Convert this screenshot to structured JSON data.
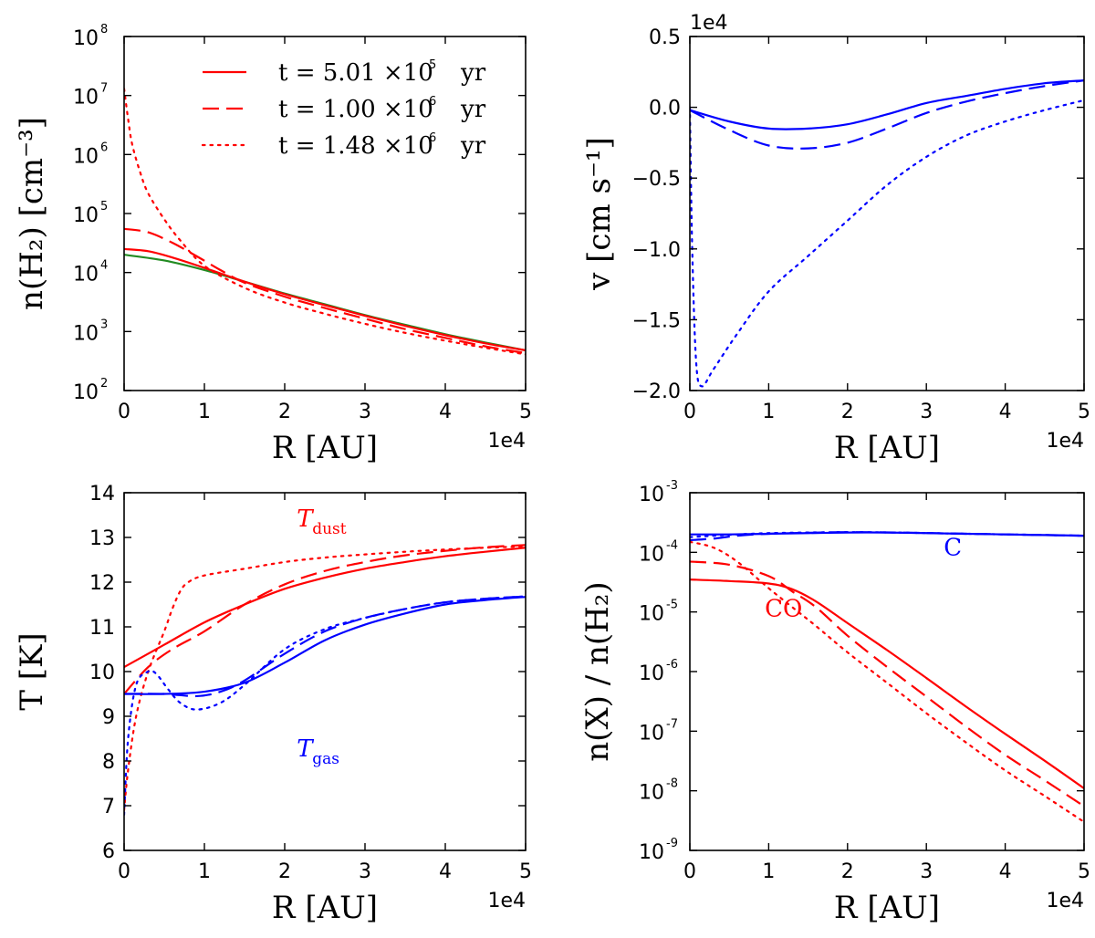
{
  "chart_data": [
    {
      "type": "line",
      "ylabel": "n(H₂) [cm⁻³]",
      "xlabel": "R [AU]",
      "x_offset": "1e4",
      "xlim": [
        0,
        5
      ],
      "ylim": [
        100,
        100000000
      ],
      "yscale": "log",
      "x_ticks": [
        "0",
        "1",
        "2",
        "3",
        "4",
        "5"
      ],
      "y_ticks": [
        {
          "base": "10",
          "exp": "2"
        },
        {
          "base": "10",
          "exp": "3"
        },
        {
          "base": "10",
          "exp": "4"
        },
        {
          "base": "10",
          "exp": "5"
        },
        {
          "base": "10",
          "exp": "6"
        },
        {
          "base": "10",
          "exp": "7"
        },
        {
          "base": "10",
          "exp": "8"
        }
      ],
      "legend": {
        "placement": "upper-right",
        "entries": [
          {
            "prefix": "t = 5.01 ×10",
            "exp": "5",
            "unit": "yr",
            "style": "solid"
          },
          {
            "prefix": "t = 1.00 ×10",
            "exp": "6",
            "unit": "yr",
            "style": "dashed"
          },
          {
            "prefix": "t = 1.48 ×10",
            "exp": "6",
            "unit": "yr",
            "style": "dotted"
          }
        ]
      },
      "series": [
        {
          "color": "#228b22",
          "style": "solid",
          "x": [
            0,
            0.5,
            1,
            1.5,
            2,
            2.5,
            3,
            3.5,
            4,
            4.5,
            5
          ],
          "y": [
            20000,
            16000,
            11000,
            7000,
            4400,
            2900,
            1900,
            1300,
            900,
            650,
            480
          ]
        },
        {
          "color": "#ff0000",
          "style": "solid",
          "x": [
            0,
            0.3,
            0.6,
            1,
            1.5,
            2,
            2.5,
            3,
            3.5,
            4,
            4.5,
            5
          ],
          "y": [
            25000,
            23000,
            18000,
            12000,
            7000,
            4300,
            2800,
            1850,
            1250,
            870,
            630,
            480
          ]
        },
        {
          "color": "#ff0000",
          "style": "dashed",
          "x": [
            0,
            0.3,
            0.6,
            0.9,
            1.2,
            1.5,
            2,
            2.5,
            3,
            3.5,
            4,
            4.5,
            5
          ],
          "y": [
            55000,
            48000,
            32000,
            19000,
            11000,
            6700,
            3900,
            2500,
            1650,
            1100,
            780,
            560,
            430
          ]
        },
        {
          "color": "#ff0000",
          "style": "dotted",
          "x": [
            0,
            0.05,
            0.1,
            0.2,
            0.3,
            0.5,
            0.7,
            1,
            1.5,
            2,
            2.5,
            3,
            3.5,
            4,
            4.5,
            5
          ],
          "y": [
            13000000,
            4000000,
            1500000,
            500000,
            220000,
            80000,
            35000,
            13000,
            5500,
            3100,
            2000,
            1350,
            950,
            700,
            530,
            410
          ]
        }
      ]
    },
    {
      "type": "line",
      "ylabel": "v [cm s⁻¹]",
      "xlabel": "R [AU]",
      "x_offset": "1e4",
      "y_offset": "1e4",
      "xlim": [
        0,
        5
      ],
      "ylim": [
        -2.0,
        0.5
      ],
      "x_ticks": [
        "0",
        "1",
        "2",
        "3",
        "4",
        "5"
      ],
      "y_ticks": [
        "0.5",
        "0.0",
        "−0.5",
        "−1.0",
        "−1.5",
        "−2.0"
      ],
      "series": [
        {
          "color": "#0000ff",
          "style": "solid",
          "x": [
            0,
            0.5,
            1,
            1.5,
            2,
            2.5,
            3,
            3.5,
            4,
            4.5,
            5
          ],
          "y": [
            -0.02,
            -0.1,
            -0.15,
            -0.15,
            -0.12,
            -0.05,
            0.03,
            0.08,
            0.13,
            0.17,
            0.19
          ]
        },
        {
          "color": "#0000ff",
          "style": "dashed",
          "x": [
            0,
            0.5,
            1,
            1.5,
            2,
            2.5,
            3,
            3.5,
            4,
            4.5,
            5
          ],
          "y": [
            -0.02,
            -0.16,
            -0.27,
            -0.29,
            -0.25,
            -0.15,
            -0.04,
            0.04,
            0.1,
            0.15,
            0.19
          ]
        },
        {
          "color": "#0000ff",
          "style": "dotted",
          "x": [
            0,
            0.03,
            0.08,
            0.15,
            0.3,
            0.6,
            1,
            1.5,
            2,
            2.5,
            3,
            3.5,
            4,
            4.5,
            5
          ],
          "y": [
            0,
            -1.0,
            -1.8,
            -1.97,
            -1.85,
            -1.6,
            -1.3,
            -1.05,
            -0.8,
            -0.55,
            -0.35,
            -0.2,
            -0.1,
            -0.02,
            0.05
          ]
        }
      ]
    },
    {
      "type": "line",
      "ylabel": "T [K]",
      "xlabel": "R [AU]",
      "x_offset": "1e4",
      "xlim": [
        0,
        5
      ],
      "ylim": [
        6,
        14
      ],
      "x_ticks": [
        "0",
        "1",
        "2",
        "3",
        "4",
        "5"
      ],
      "y_ticks": [
        "6",
        "7",
        "8",
        "9",
        "10",
        "11",
        "12",
        "13",
        "14"
      ],
      "annotations": [
        {
          "text": "T",
          "sub": "dust",
          "color": "#ff0000",
          "x": 2.15,
          "y": 13.25
        },
        {
          "text": "T",
          "sub": "gas",
          "color": "#0000ff",
          "x": 2.15,
          "y": 8.1
        }
      ],
      "series": [
        {
          "color": "#ff0000",
          "style": "solid",
          "x": [
            0,
            0.5,
            1,
            1.5,
            2,
            2.5,
            3,
            3.5,
            4,
            4.5,
            5
          ],
          "y": [
            10.1,
            10.6,
            11.1,
            11.5,
            11.85,
            12.1,
            12.3,
            12.45,
            12.58,
            12.68,
            12.77
          ]
        },
        {
          "color": "#ff0000",
          "style": "dashed",
          "x": [
            0,
            0.3,
            0.6,
            1,
            1.5,
            2,
            2.5,
            3,
            3.5,
            4,
            4.5,
            5
          ],
          "y": [
            9.5,
            10.1,
            10.5,
            10.9,
            11.5,
            11.95,
            12.25,
            12.45,
            12.6,
            12.7,
            12.78,
            12.83
          ]
        },
        {
          "color": "#ff0000",
          "style": "dotted",
          "x": [
            0,
            0.05,
            0.15,
            0.3,
            0.5,
            0.6,
            0.7,
            0.8,
            1,
            1.5,
            2,
            2.5,
            3,
            3.5,
            4,
            4.5,
            5
          ],
          "y": [
            6.9,
            7.8,
            9.0,
            10.0,
            10.9,
            11.4,
            11.8,
            12.0,
            12.15,
            12.3,
            12.45,
            12.55,
            12.62,
            12.68,
            12.73,
            12.77,
            12.8
          ]
        },
        {
          "color": "#0000ff",
          "style": "solid",
          "x": [
            0,
            0.5,
            1,
            1.5,
            2,
            2.5,
            3,
            3.5,
            4,
            4.5,
            5
          ],
          "y": [
            9.5,
            9.5,
            9.55,
            9.75,
            10.2,
            10.7,
            11.05,
            11.3,
            11.5,
            11.6,
            11.67
          ]
        },
        {
          "color": "#0000ff",
          "style": "dashed",
          "x": [
            0,
            0.5,
            0.9,
            1.2,
            1.5,
            2,
            2.5,
            3,
            3.5,
            4,
            4.5,
            5
          ],
          "y": [
            9.5,
            9.5,
            9.45,
            9.55,
            9.8,
            10.4,
            10.9,
            11.2,
            11.4,
            11.55,
            11.63,
            11.68
          ]
        },
        {
          "color": "#0000ff",
          "style": "dotted",
          "x": [
            0,
            0.05,
            0.15,
            0.3,
            0.4,
            0.55,
            0.7,
            0.9,
            1.2,
            1.5,
            2,
            2.5,
            3,
            3.5,
            4,
            4.5,
            5
          ],
          "y": [
            6.8,
            8.5,
            9.7,
            10.0,
            9.95,
            9.6,
            9.3,
            9.15,
            9.3,
            9.7,
            10.5,
            10.95,
            11.2,
            11.4,
            11.55,
            11.63,
            11.68
          ]
        }
      ]
    },
    {
      "type": "line",
      "ylabel": "n(X) / n(H₂)",
      "xlabel": "R [AU]",
      "x_offset": "1e4",
      "xlim": [
        0,
        5
      ],
      "ylim": [
        1e-09,
        0.001
      ],
      "yscale": "log",
      "x_ticks": [
        "0",
        "1",
        "2",
        "3",
        "4",
        "5"
      ],
      "y_ticks": [
        {
          "base": "10",
          "exp": "-9"
        },
        {
          "base": "10",
          "exp": "-8"
        },
        {
          "base": "10",
          "exp": "-7"
        },
        {
          "base": "10",
          "exp": "-6"
        },
        {
          "base": "10",
          "exp": "-5"
        },
        {
          "base": "10",
          "exp": "-4"
        },
        {
          "base": "10",
          "exp": "-3"
        }
      ],
      "annotations": [
        {
          "text": "C",
          "color": "#0000ff",
          "x": 3.22,
          "y": 9e-05
        },
        {
          "text": "CO",
          "color": "#ff0000",
          "x": 0.95,
          "y": 8.5e-06
        }
      ],
      "series": [
        {
          "color": "#0000ff",
          "style": "solid",
          "x": [
            0,
            0.5,
            1,
            1.5,
            2,
            2.5,
            3,
            3.5,
            4,
            4.5,
            5
          ],
          "y": [
            0.0002,
            0.0002,
            0.000205,
            0.00021,
            0.000215,
            0.000215,
            0.00021,
            0.000205,
            0.0002,
            0.000195,
            0.00019
          ]
        },
        {
          "color": "#0000ff",
          "style": "dashed",
          "x": [
            0,
            0.3,
            0.6,
            1,
            1.5,
            2,
            2.5,
            3,
            3.5,
            4,
            4.5,
            5
          ],
          "y": [
            0.00016,
            0.00017,
            0.00019,
            0.000205,
            0.000213,
            0.000218,
            0.000216,
            0.000211,
            0.000205,
            0.0002,
            0.000195,
            0.00019
          ]
        },
        {
          "color": "#0000ff",
          "style": "dotted",
          "x": [
            0,
            0.3,
            0.6,
            1,
            1.5,
            2,
            2.5,
            3,
            3.5,
            4,
            4.5,
            5
          ],
          "y": [
            0.00018,
            0.00019,
            0.0002,
            0.00021,
            0.000215,
            0.000218,
            0.000216,
            0.000211,
            0.000205,
            0.0002,
            0.000195,
            0.00019
          ]
        },
        {
          "color": "#ff0000",
          "style": "solid",
          "x": [
            0,
            0.5,
            1,
            1.3,
            1.6,
            2,
            2.5,
            3,
            3.5,
            4,
            4.5,
            5
          ],
          "y": [
            3.5e-05,
            3.3e-05,
            3e-05,
            2.4e-05,
            1.5e-05,
            6.5e-06,
            2.3e-06,
            7.8e-07,
            2.6e-07,
            9e-08,
            3.2e-08,
            1.1e-08
          ]
        },
        {
          "color": "#ff0000",
          "style": "dashed",
          "x": [
            0,
            0.5,
            1,
            1.3,
            1.6,
            2,
            2.5,
            3,
            3.5,
            4,
            4.5,
            5
          ],
          "y": [
            7e-05,
            6.2e-05,
            4e-05,
            2.2e-05,
            1.2e-05,
            4e-06,
            1.2e-06,
            3.8e-07,
            1.2e-07,
            4e-08,
            1.5e-08,
            5.5e-09
          ]
        },
        {
          "color": "#ff0000",
          "style": "dotted",
          "x": [
            0,
            0.3,
            0.6,
            1,
            1.3,
            1.6,
            2,
            2.5,
            3,
            3.5,
            4,
            4.5,
            5
          ],
          "y": [
            0.00015,
            0.00012,
            7e-05,
            2.5e-05,
            1.2e-05,
            5.8e-06,
            2.1e-06,
            6.5e-07,
            2e-07,
            6.5e-08,
            2.2e-08,
            8.2e-09,
            3e-09
          ]
        }
      ]
    }
  ]
}
